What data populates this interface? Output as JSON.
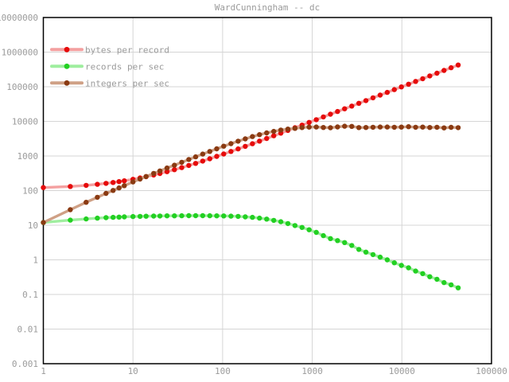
{
  "chart_data": {
    "type": "line",
    "title": "WardCunningham -- dc",
    "x_scale": "log",
    "y_scale": "log",
    "xlim": [
      1,
      100000
    ],
    "ylim": [
      0.001,
      10000000
    ],
    "grid": true,
    "legend_position": "top-left",
    "colors": {
      "background": "#ffffff",
      "border": "#000000",
      "grid": "#d5d5d5",
      "text": "#9b9b9b"
    },
    "x_ticks": [
      "1",
      "10",
      "100",
      "1000",
      "10000",
      "100000"
    ],
    "y_ticks": [
      "10000000",
      "1000000",
      "100000",
      "10000",
      "1000",
      "100",
      "10",
      "1",
      "0.1",
      "0.01",
      "0.001"
    ],
    "x": [
      1,
      2,
      3,
      4,
      5,
      6,
      7,
      8,
      10,
      12,
      14,
      17,
      20,
      24,
      29,
      35,
      42,
      50,
      60,
      72,
      86,
      103,
      124,
      149,
      179,
      215,
      258,
      310,
      372,
      446,
      535,
      642,
      770,
      924,
      1109,
      1331,
      1597,
      1916,
      2299,
      2759,
      3311,
      3973,
      4768,
      5722,
      6866,
      8239,
      9887,
      11864,
      14237,
      17084,
      20501,
      24601,
      29521,
      35425,
      42510
    ],
    "series": [
      {
        "name": "bytes per record",
        "dot_color": "#e60a0a",
        "line_color": "#f4a0a0",
        "y": [
          122,
          132,
          142,
          152,
          162,
          172,
          182,
          192,
          212,
          232,
          252,
          282,
          312,
          352,
          402,
          462,
          532,
          612,
          712,
          832,
          972,
          1142,
          1352,
          1602,
          1902,
          2262,
          2692,
          3212,
          3832,
          4572,
          5462,
          6532,
          7812,
          9352,
          11202,
          13422,
          16082,
          19272,
          23102,
          27702,
          33222,
          39842,
          47792,
          57332,
          68772,
          82502,
          98982,
          118752,
          142482,
          170952,
          205122,
          246122,
          295322,
          354362,
          425212
        ]
      },
      {
        "name": "records per sec",
        "dot_color": "#22d022",
        "line_color": "#9fee9f",
        "y": [
          12,
          14,
          15.2,
          16,
          16.5,
          16.9,
          17.2,
          17.4,
          17.8,
          18.0,
          18.2,
          18.4,
          18.5,
          18.7,
          18.7,
          18.8,
          18.9,
          18.9,
          18.9,
          18.8,
          18.7,
          18.6,
          18.3,
          18.0,
          17.4,
          16.9,
          16.0,
          15.0,
          13.8,
          12.6,
          11.2,
          9.8,
          8.6,
          7.4,
          6.2,
          5.0,
          4.1,
          3.6,
          3.15,
          2.6,
          2.0,
          1.67,
          1.42,
          1.2,
          1.0,
          0.82,
          0.69,
          0.59,
          0.475,
          0.4,
          0.325,
          0.275,
          0.22,
          0.19,
          0.155
        ]
      },
      {
        "name": "integers per sec",
        "dot_color": "#8a3a12",
        "line_color": "#cfa085",
        "y": [
          12,
          28,
          46,
          64,
          83,
          101,
          120,
          139,
          178,
          216,
          255,
          313,
          370,
          449,
          542,
          658,
          794,
          945,
          1134,
          1354,
          1608,
          1916,
          2269,
          2682,
          3115,
          3634,
          4128,
          4650,
          5134,
          5620,
          5992,
          6292,
          6622,
          6838,
          6876,
          6655,
          6548,
          6898,
          7242,
          7173,
          6622,
          6635,
          6771,
          6866,
          6866,
          6756,
          6822,
          7000,
          6763,
          6834,
          6663,
          6765,
          6495,
          6731,
          6589
        ]
      }
    ]
  }
}
